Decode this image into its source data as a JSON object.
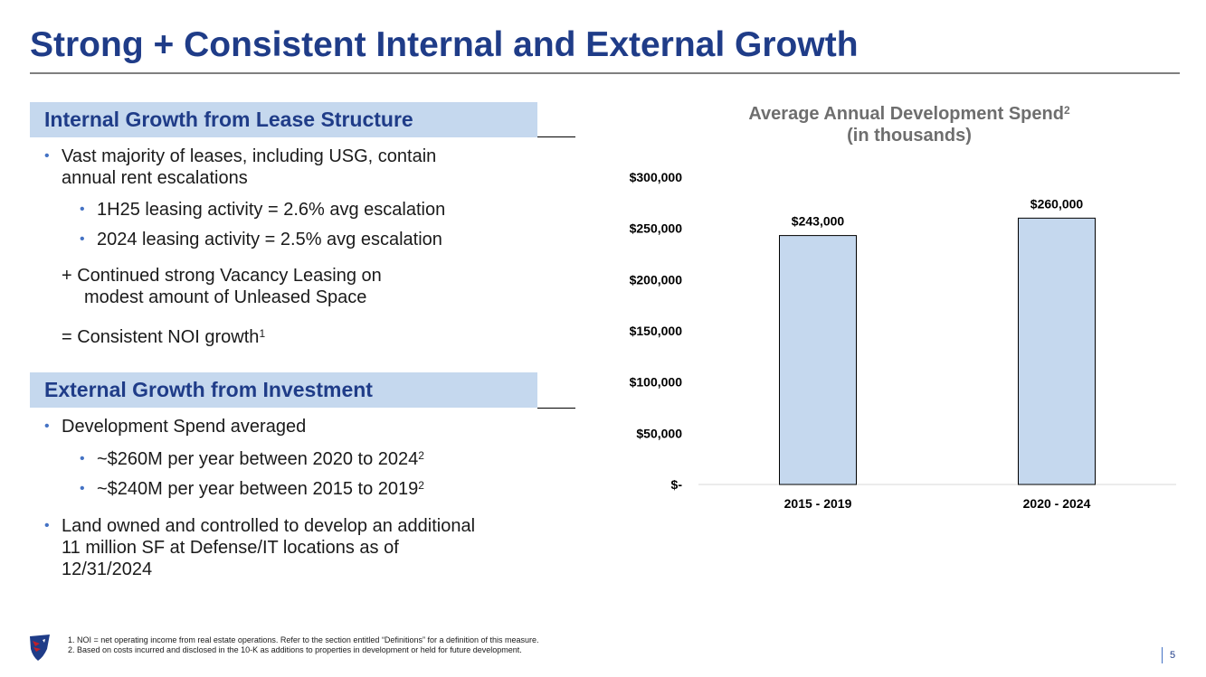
{
  "slide": {
    "title": "Strong + Consistent Internal and External Growth",
    "page_number": "5"
  },
  "internal": {
    "header": "Internal Growth from Lease Structure",
    "bullet1_line1": "Vast majority of leases, including USG, contain",
    "bullet1_line2": "annual rent escalations",
    "sub1": "1H25 leasing activity = 2.6% avg escalation",
    "sub2": "2024 leasing activity = 2.5% avg escalation",
    "plus_line1": "+  Continued strong Vacancy Leasing on",
    "plus_line2": "modest amount of Unleased Space",
    "equals_text": "=  Consistent NOI growth",
    "equals_sup": "1"
  },
  "external": {
    "header": "External Growth from Investment",
    "bullet1": "Development Spend averaged",
    "sub1": "~$260M per year between 2020 to 2024",
    "sub1_sup": "2",
    "sub2": "~$240M per year between 2015 to 2019",
    "sub2_sup": "2",
    "bullet2_line1": "Land owned and controlled to develop an additional",
    "bullet2_line2": "11 million SF at Defense/IT locations as of",
    "bullet2_line3": "12/31/2024"
  },
  "chart_data": {
    "type": "bar",
    "title": "Average Annual Development Spend",
    "title_sup": "2",
    "subtitle": "(in thousands)",
    "categories": [
      "2015 - 2019",
      "2020 - 2024"
    ],
    "values": [
      243000,
      260000
    ],
    "data_labels": [
      "$243,000",
      "$260,000"
    ],
    "ylim": [
      0,
      300000
    ],
    "yticks": [
      0,
      50000,
      100000,
      150000,
      200000,
      250000,
      300000
    ],
    "ytick_labels": [
      "$-",
      "$50,000",
      "$100,000",
      "$150,000",
      "$200,000",
      "$250,000",
      "$300,000"
    ],
    "bar_color": "#c5d8ee",
    "xlabel": "",
    "ylabel": ""
  },
  "footnotes": {
    "note1": "1. NOI = net operating income from real estate operations. Refer to the section entitled “Definitions” for a definition of this measure.",
    "note2": "2. Based on costs incurred and disclosed in the 10-K as additions to properties in development or held for future development."
  },
  "colors": {
    "accent": "#1f3c88",
    "header_fill": "#c5d8ee",
    "bullet": "#4472c4"
  }
}
